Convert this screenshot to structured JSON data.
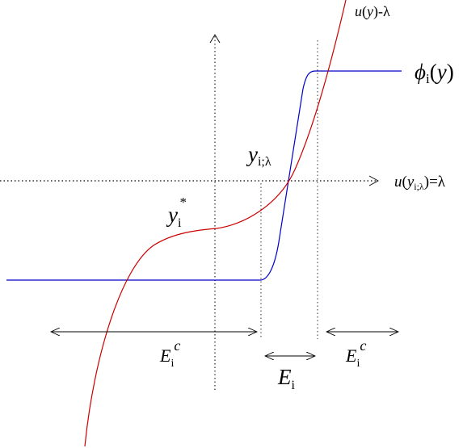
{
  "colors": {
    "background": "#ffffff",
    "u_curve": "#cc0000",
    "phi_curve": "#0000cc",
    "axes": "#000000",
    "guides": "#333333"
  },
  "labels": {
    "u_curve": {
      "u": "u",
      "open": "(",
      "y": "y",
      "close": ")",
      "minus": "-",
      "lambda": "λ"
    },
    "phi": {
      "phi": "ϕ",
      "sub": "i",
      "open": "(",
      "y": "y",
      "close": ")"
    },
    "axis_right": {
      "u": "u",
      "open": "(",
      "y": "y",
      "sub": "i;λ",
      "close": ")",
      "eq": "=λ"
    },
    "y_ilambda": {
      "y": "y",
      "sub": "i;λ"
    },
    "y_star": {
      "y": "y",
      "sub": "i",
      "sup": "*"
    },
    "E_left": {
      "E": "E",
      "sub": "i",
      "sup": "c"
    },
    "E_mid": {
      "E": "E",
      "sub": "i"
    },
    "E_right": {
      "E": "E",
      "sub": "i",
      "sup": "c"
    }
  }
}
